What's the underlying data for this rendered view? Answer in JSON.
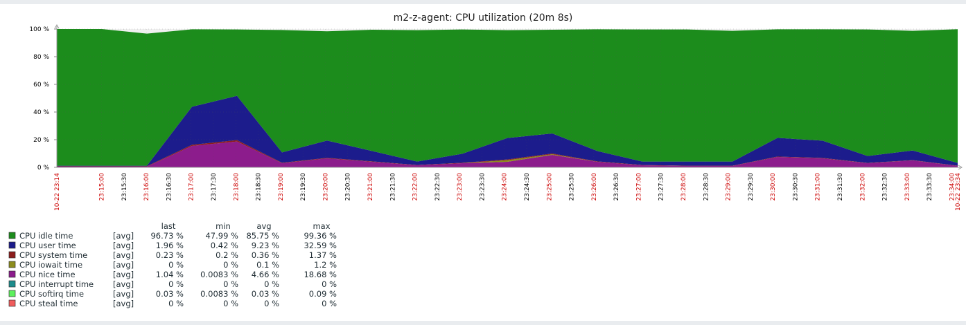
{
  "title": "m2-z-agent: CPU utilization (20m 8s)",
  "chart_data": {
    "type": "area",
    "stacked": true,
    "y_axis": {
      "min": 0,
      "max": 100,
      "ticks": [
        "0 %",
        "20 %",
        "40 %",
        "60 %",
        "80 %",
        "100 %"
      ]
    },
    "x_axis": {
      "start_label": "10-22 23:14",
      "end_label": "10-22 23:34",
      "tick_labels": [
        "23:15:00",
        "23:15:30",
        "23:16:00",
        "23:16:30",
        "23:17:00",
        "23:17:30",
        "23:18:00",
        "23:18:30",
        "23:19:00",
        "23:19:30",
        "23:20:00",
        "23:20:30",
        "23:21:00",
        "23:21:30",
        "23:22:00",
        "23:22:30",
        "23:23:00",
        "23:23:30",
        "23:24:00",
        "23:24:30",
        "23:25:00",
        "23:25:30",
        "23:26:00",
        "23:26:30",
        "23:27:00",
        "23:27:30",
        "23:28:00",
        "23:28:30",
        "23:29:00",
        "23:29:30",
        "23:30:00",
        "23:30:30",
        "23:31:00",
        "23:31:30",
        "23:32:00",
        "23:32:30",
        "23:33:00",
        "23:33:30",
        "23:34:00"
      ],
      "major_color": "#cc0000",
      "minor_color": "#000000"
    },
    "x": [
      "23:14",
      "23:15",
      "23:16",
      "23:17",
      "23:18",
      "23:19",
      "23:20",
      "23:21",
      "23:22",
      "23:23",
      "23:24",
      "23:25",
      "23:26",
      "23:27",
      "23:28",
      "23:29",
      "23:30",
      "23:31",
      "23:32",
      "23:33",
      "23:34"
    ],
    "series": [
      {
        "name": "CPU nice time",
        "color": "#8c1c8c",
        "values": [
          0.5,
          0.5,
          0.5,
          15.5,
          18.7,
          3.0,
          6.5,
          4.0,
          1.5,
          3.0,
          4.0,
          9.0,
          4.0,
          1.5,
          1.0,
          1.0,
          7.5,
          6.5,
          3.0,
          5.0,
          1.0
        ]
      },
      {
        "name": "CPU iowait time",
        "color": "#8c8c1c",
        "values": [
          0,
          0,
          0,
          0,
          0,
          0,
          0,
          0,
          0,
          0,
          1.2,
          0.5,
          0,
          0,
          0,
          0,
          0,
          0,
          0,
          0,
          0
        ]
      },
      {
        "name": "CPU system time",
        "color": "#8c1c1c",
        "values": [
          0.3,
          0.3,
          0.3,
          0.8,
          1.0,
          0.3,
          0.4,
          0.3,
          0.2,
          0.3,
          0.5,
          0.5,
          0.3,
          0.2,
          0.2,
          0.2,
          0.3,
          0.3,
          0.2,
          0.2,
          0.2
        ]
      },
      {
        "name": "CPU user time",
        "color": "#1c1c8c",
        "values": [
          0.4,
          0.4,
          0.4,
          27.5,
          32.0,
          7.5,
          12.5,
          7.5,
          2.5,
          6.5,
          15.5,
          14.5,
          7.5,
          2.5,
          3.0,
          3.0,
          13.5,
          12.5,
          5.0,
          7.0,
          2.0
        ]
      },
      {
        "name": "CPU idle time",
        "color": "#1c8c1c",
        "values": [
          98.8,
          98.8,
          95.5,
          56.0,
          47.99,
          88.5,
          79.0,
          87.7,
          95.0,
          89.9,
          78.0,
          75.0,
          88.0,
          95.5,
          95.5,
          94.5,
          78.5,
          80.5,
          91.5,
          86.5,
          96.7
        ]
      }
    ]
  },
  "legend": {
    "headers": {
      "last": "last",
      "min": "min",
      "avg": "avg",
      "max": "max"
    },
    "rows": [
      {
        "name": "CPU idle time",
        "agg": "[avg]",
        "last": "96.73 %",
        "min": "47.99 %",
        "avg": "85.75 %",
        "max": "99.36 %",
        "color": "#1c8c1c"
      },
      {
        "name": "CPU user time",
        "agg": "[avg]",
        "last": "1.96 %",
        "min": "0.42 %",
        "avg": "9.23 %",
        "max": "32.59 %",
        "color": "#1c1c8c"
      },
      {
        "name": "CPU system time",
        "agg": "[avg]",
        "last": "0.23 %",
        "min": "0.2 %",
        "avg": "0.36 %",
        "max": "1.37 %",
        "color": "#8c1c1c"
      },
      {
        "name": "CPU iowait time",
        "agg": "[avg]",
        "last": "0 %",
        "min": "0 %",
        "avg": "0.1 %",
        "max": "1.2 %",
        "color": "#8c8c1c"
      },
      {
        "name": "CPU nice time",
        "agg": "[avg]",
        "last": "1.04 %",
        "min": "0.0083 %",
        "avg": "4.66 %",
        "max": "18.68 %",
        "color": "#8c1c8c"
      },
      {
        "name": "CPU interrupt time",
        "agg": "[avg]",
        "last": "0 %",
        "min": "0 %",
        "avg": "0 %",
        "max": "0 %",
        "color": "#1c8c8c"
      },
      {
        "name": "CPU softirq time",
        "agg": "[avg]",
        "last": "0.03 %",
        "min": "0.0083 %",
        "avg": "0.03 %",
        "max": "0.09 %",
        "color": "#5cf05c"
      },
      {
        "name": "CPU steal time",
        "agg": "[avg]",
        "last": "0 %",
        "min": "0 %",
        "avg": "0 %",
        "max": "0 %",
        "color": "#f05c5c"
      }
    ]
  }
}
